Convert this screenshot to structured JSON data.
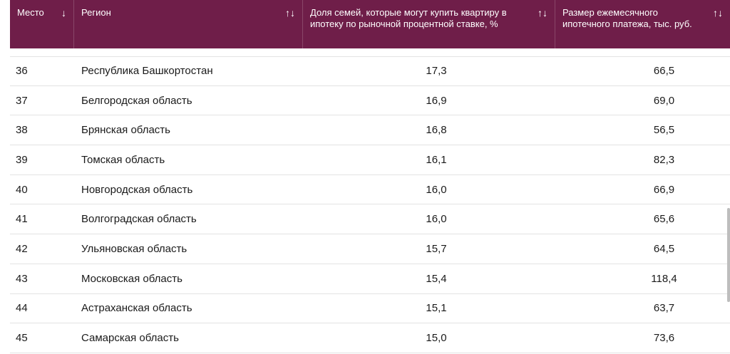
{
  "table": {
    "headers": {
      "place": "Место",
      "place_sort": "↓",
      "region": "Регион",
      "region_sort": "↑↓",
      "share": "Доля семей, которые могут купить квартиру в ипотеку по рыночной процентной ставке, %",
      "share_sort": "↑↓",
      "payment": "Размер ежемесячного ипотечного платежа, тыс. руб.",
      "payment_sort": "↑↓"
    },
    "rows": [
      {
        "place": "36",
        "region": "Республика Башкортостан",
        "share": "17,3",
        "payment": "66,5"
      },
      {
        "place": "37",
        "region": "Белгородская область",
        "share": "16,9",
        "payment": "69,0"
      },
      {
        "place": "38",
        "region": "Брянская область",
        "share": "16,8",
        "payment": "56,5"
      },
      {
        "place": "39",
        "region": "Томская область",
        "share": "16,1",
        "payment": "82,3"
      },
      {
        "place": "40",
        "region": "Новгородская область",
        "share": "16,0",
        "payment": "66,9"
      },
      {
        "place": "41",
        "region": "Волгоградская область",
        "share": "16,0",
        "payment": "65,6"
      },
      {
        "place": "42",
        "region": "Ульяновская область",
        "share": "15,7",
        "payment": "64,5"
      },
      {
        "place": "43",
        "region": "Московская область",
        "share": "15,4",
        "payment": "118,4"
      },
      {
        "place": "44",
        "region": "Астраханская область",
        "share": "15,1",
        "payment": "63,7"
      },
      {
        "place": "45",
        "region": "Самарская область",
        "share": "15,0",
        "payment": "73,6"
      }
    ]
  },
  "colors": {
    "header_bg": "#6f1e49",
    "header_text": "#ffffff",
    "row_divider": "#e3e3e3"
  }
}
